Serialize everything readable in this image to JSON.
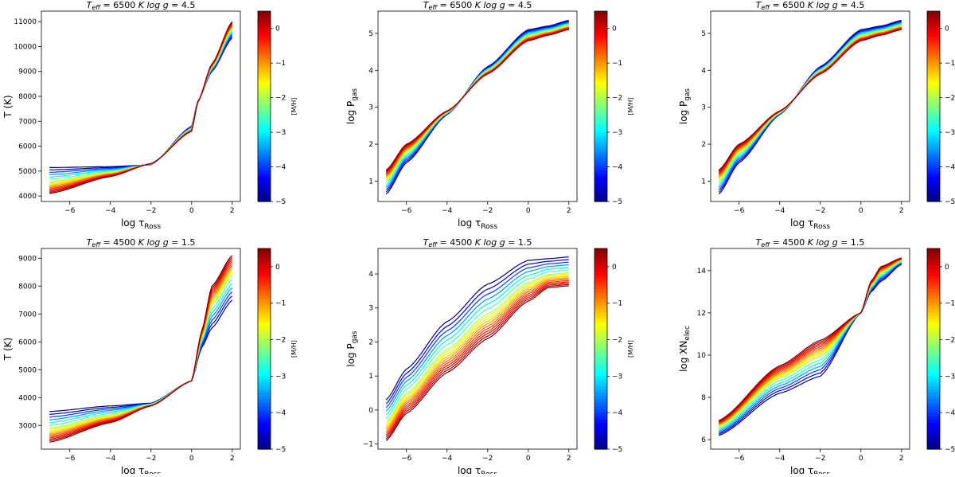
{
  "colors": {
    "background": "#ffffff",
    "axis": "#000000"
  },
  "chart_data": [
    {
      "type": "line",
      "panel": "top-left",
      "title_teff": "6500",
      "title_logg": "4.5",
      "title_prefix": "T",
      "title_sub": "eff",
      "title_eq": " = 6500 ",
      "title_unit": "K",
      "title_logg_label": "log g",
      "title_logg_eq": " = 4.5",
      "xlabel": "log τ",
      "xlabel_sub": "Ross",
      "ylabel": "T (K)",
      "ylabel_sub": "",
      "xlim": [
        -7.4,
        2.4
      ],
      "ylim": [
        3780,
        11420
      ],
      "xticks": [
        -6,
        -4,
        -2,
        0,
        2
      ],
      "yticks": [
        4000,
        5000,
        6000,
        7000,
        8000,
        9000,
        10000,
        11000
      ],
      "series_shape": "T",
      "anchors_x": [
        -7,
        -4,
        -2,
        0,
        0.3,
        1,
        2
      ],
      "anchors_low": [
        5140,
        5180,
        5250,
        6800,
        7800,
        9000,
        10350
      ],
      "anchors_high": [
        4100,
        4780,
        5300,
        6600,
        7750,
        9300,
        11000
      ],
      "colorbar_label": "[M/H]",
      "colorbar_ticks": [
        0,
        -1,
        -2,
        -3,
        -4,
        -5
      ],
      "colorbar_range": [
        -5,
        0.5
      ]
    },
    {
      "type": "line",
      "panel": "top-middle",
      "title_prefix": "T",
      "title_sub": "eff",
      "title_eq": " = 6500 ",
      "title_unit": "K",
      "title_logg_label": "log g",
      "title_logg_eq": " = 4.5",
      "xlabel": "log τ",
      "xlabel_sub": "Ross",
      "ylabel": "log P",
      "ylabel_sub": "gas",
      "xlim": [
        -7.4,
        2.4
      ],
      "ylim": [
        0.45,
        5.6
      ],
      "xticks": [
        -6,
        -4,
        -2,
        0,
        2
      ],
      "yticks": [
        1,
        2,
        3,
        4,
        5
      ],
      "anchors_x": [
        -7,
        -6,
        -4,
        -2,
        0,
        1,
        2
      ],
      "anchors_low": [
        0.65,
        1.5,
        2.8,
        4.1,
        5.1,
        5.2,
        5.35
      ],
      "anchors_high": [
        1.3,
        2.0,
        2.9,
        3.9,
        4.8,
        4.95,
        5.1
      ],
      "colorbar_label": "[M/H]",
      "colorbar_ticks": [
        0,
        -1,
        -2,
        -3,
        -4,
        -5
      ],
      "colorbar_range": [
        -5,
        0.5
      ]
    },
    {
      "type": "line",
      "panel": "top-right",
      "title_prefix": "T",
      "title_sub": "eff",
      "title_eq": " = 6500 ",
      "title_unit": "K",
      "title_logg_label": "log g",
      "title_logg_eq": " = 4.5",
      "xlabel": "log τ",
      "xlabel_sub": "Ross",
      "ylabel": "log P",
      "ylabel_sub": "gas",
      "xlim": [
        -7.4,
        2.4
      ],
      "ylim": [
        0.45,
        5.6
      ],
      "xticks": [
        -6,
        -4,
        -2,
        0,
        2
      ],
      "yticks": [
        1,
        2,
        3,
        4,
        5
      ],
      "anchors_x": [
        -7,
        -6,
        -4,
        -2,
        0,
        1,
        2
      ],
      "anchors_low": [
        0.65,
        1.5,
        2.8,
        4.1,
        5.1,
        5.2,
        5.35
      ],
      "anchors_high": [
        1.3,
        2.0,
        2.9,
        3.9,
        4.8,
        4.95,
        5.1
      ],
      "colorbar_label": "[M/H]",
      "colorbar_ticks": [
        0,
        -1,
        -2,
        -3,
        -4,
        -5
      ],
      "colorbar_range": [
        -5,
        0.5
      ]
    },
    {
      "type": "line",
      "panel": "bottom-left",
      "title_prefix": "T",
      "title_sub": "eff",
      "title_eq": " = 4500 ",
      "title_unit": "K",
      "title_logg_label": "log g",
      "title_logg_eq": " = 1.5",
      "xlabel": "log τ",
      "xlabel_sub": "Ross",
      "ylabel": "T (K)",
      "ylabel_sub": "",
      "xlim": [
        -7.4,
        2.4
      ],
      "ylim": [
        2150,
        9350
      ],
      "xticks": [
        -6,
        -4,
        -2,
        0,
        2
      ],
      "yticks": [
        3000,
        4000,
        5000,
        6000,
        7000,
        8000,
        9000
      ],
      "anchors_x": [
        -7,
        -4,
        -2,
        0,
        0.5,
        1,
        2
      ],
      "anchors_low": [
        3500,
        3700,
        3800,
        4600,
        5800,
        6500,
        7500
      ],
      "anchors_high": [
        2400,
        3100,
        3700,
        4600,
        6400,
        8000,
        9100
      ],
      "colorbar_label": "[M/H]",
      "colorbar_ticks": [
        0,
        -1,
        -2,
        -3,
        -4,
        -5
      ],
      "colorbar_range": [
        -5,
        0.5
      ]
    },
    {
      "type": "line",
      "panel": "bottom-middle",
      "title_prefix": "T",
      "title_sub": "eff",
      "title_eq": " = 4500 ",
      "title_unit": "K",
      "title_logg_label": "log g",
      "title_logg_eq": " = 1.5",
      "xlabel": "log τ",
      "xlabel_sub": "Ross",
      "ylabel": "log P",
      "ylabel_sub": "gas",
      "xlim": [
        -7.4,
        2.4
      ],
      "ylim": [
        -1.15,
        4.75
      ],
      "xticks": [
        -6,
        -4,
        -2,
        0,
        2
      ],
      "yticks": [
        -1,
        0,
        1,
        2,
        3,
        4
      ],
      "anchors_x": [
        -7,
        -6,
        -4,
        -2,
        0,
        1,
        2
      ],
      "anchors_low": [
        0.3,
        1.2,
        2.6,
        3.7,
        4.4,
        4.45,
        4.5
      ],
      "anchors_high": [
        -0.9,
        -0.1,
        1.1,
        2.1,
        3.2,
        3.6,
        3.65
      ],
      "colorbar_label": "[M/H]",
      "colorbar_ticks": [
        0,
        -1,
        -2,
        -3,
        -4,
        -5
      ],
      "colorbar_range": [
        -5,
        0.5
      ]
    },
    {
      "type": "line",
      "panel": "bottom-right",
      "title_prefix": "T",
      "title_sub": "eff",
      "title_eq": " = 4500 ",
      "title_unit": "K",
      "title_logg_label": "log g",
      "title_logg_eq": " = 1.5",
      "xlabel": "log τ",
      "xlabel_sub": "Ross",
      "ylabel": "log XN",
      "ylabel_sub": "elec",
      "xlim": [
        -7.4,
        2.4
      ],
      "ylim": [
        5.55,
        15.05
      ],
      "xticks": [
        -6,
        -4,
        -2,
        0,
        2
      ],
      "yticks": [
        6,
        8,
        10,
        12,
        14
      ],
      "anchors_x": [
        -7,
        -4,
        -2,
        0,
        0.5,
        1,
        2
      ],
      "anchors_low": [
        6.2,
        8.2,
        9.0,
        12.0,
        13.0,
        13.5,
        14.3
      ],
      "anchors_high": [
        6.9,
        9.5,
        10.7,
        12.0,
        13.5,
        14.2,
        14.6
      ],
      "colorbar_label": "[M/H]",
      "colorbar_ticks": [
        0,
        -1,
        -2,
        -3,
        -4,
        -5
      ],
      "colorbar_range": [
        -5,
        0.5
      ]
    }
  ],
  "metallicities": [
    -5,
    -4.5,
    -4,
    -3.5,
    -3,
    -2.5,
    -2,
    -1.75,
    -1.5,
    -1.25,
    -1,
    -0.75,
    -0.5,
    -0.25,
    0,
    0.25,
    0.5
  ]
}
